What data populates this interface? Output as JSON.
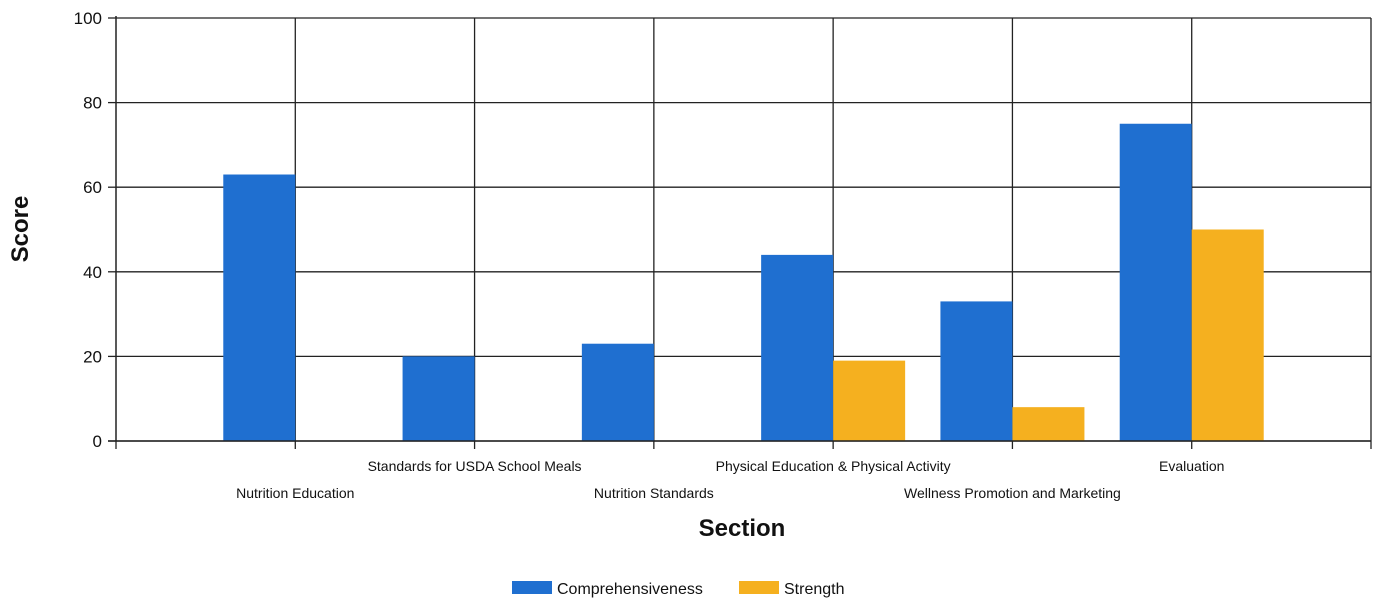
{
  "chart_data": {
    "type": "bar",
    "title": "",
    "xlabel": "Section",
    "ylabel": "Score",
    "ylim": [
      0,
      100
    ],
    "yticks": [
      0,
      20,
      40,
      60,
      80,
      100
    ],
    "grid": true,
    "legend_position": "bottom",
    "categories": [
      "Nutrition Education",
      "Standards for USDA School Meals",
      "Nutrition Standards",
      "Physical Education & Physical Activity",
      "Wellness Promotion and Marketing",
      "Evaluation"
    ],
    "series": [
      {
        "name": "Comprehensiveness",
        "color": "#1f6fd0",
        "values": [
          63,
          20,
          23,
          44,
          33,
          75
        ]
      },
      {
        "name": "Strength",
        "color": "#f5b01f",
        "values": [
          0,
          0,
          0,
          19,
          8,
          50
        ]
      }
    ]
  }
}
